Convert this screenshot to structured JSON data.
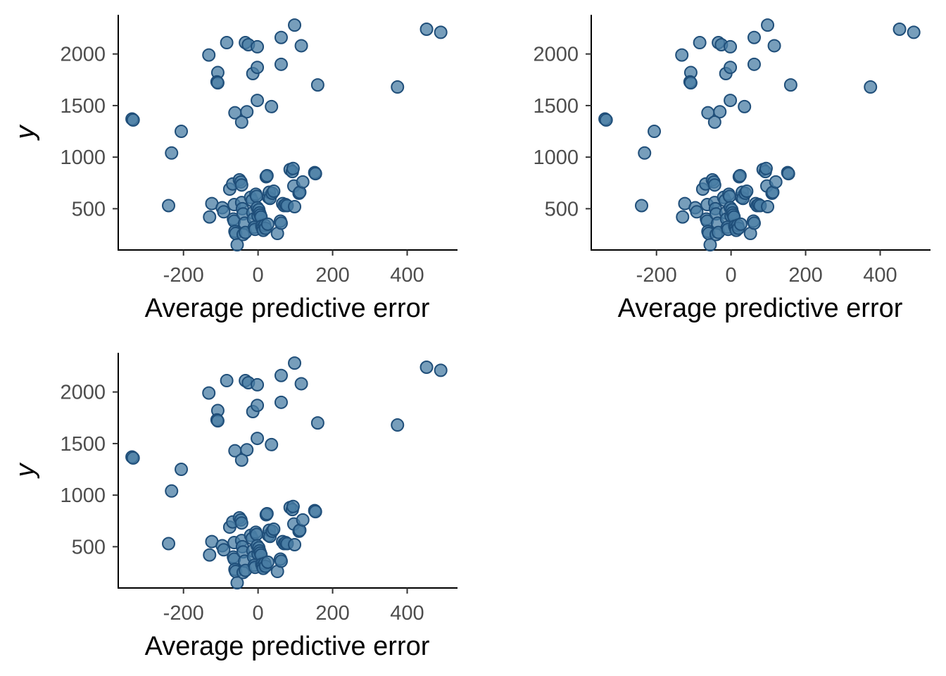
{
  "chart_data": [
    {
      "type": "scatter",
      "panel": "top-left",
      "xlabel": "Average predictive error",
      "ylabel": "y",
      "xlim": [
        -375,
        535
      ],
      "ylim": [
        100,
        2380
      ],
      "xticks": [
        -200,
        0,
        200,
        400
      ],
      "yticks": [
        500,
        1000,
        1500,
        2000
      ],
      "grid": false,
      "legend": "none",
      "point_fill": "#4a7da4",
      "point_stroke": "#1f4e79",
      "point_opacity": 0.75,
      "points": [
        [
          -338,
          1370
        ],
        [
          -335,
          1360
        ],
        [
          -206,
          1250
        ],
        [
          -232,
          1040
        ],
        [
          -240,
          530
        ],
        [
          -132,
          1990
        ],
        [
          -108,
          1820
        ],
        [
          -110,
          1730
        ],
        [
          -108,
          1720
        ],
        [
          -84,
          2110
        ],
        [
          -34,
          2110
        ],
        [
          -26,
          2090
        ],
        [
          -2,
          2070
        ],
        [
          62,
          2160
        ],
        [
          98,
          2280
        ],
        [
          116,
          2080
        ],
        [
          62,
          1900
        ],
        [
          -14,
          1810
        ],
        [
          -2,
          1870
        ],
        [
          -2,
          1550
        ],
        [
          36,
          1490
        ],
        [
          -62,
          1430
        ],
        [
          -30,
          1440
        ],
        [
          -44,
          1340
        ],
        [
          160,
          1700
        ],
        [
          374,
          1680
        ],
        [
          452,
          2240
        ],
        [
          490,
          2210
        ],
        [
          -130,
          420
        ],
        [
          -124,
          550
        ],
        [
          -96,
          510
        ],
        [
          -92,
          470
        ],
        [
          -76,
          690
        ],
        [
          -68,
          740
        ],
        [
          -64,
          540
        ],
        [
          -66,
          400
        ],
        [
          -64,
          380
        ],
        [
          -62,
          280
        ],
        [
          -60,
          260
        ],
        [
          -56,
          150
        ],
        [
          -50,
          780
        ],
        [
          -46,
          760
        ],
        [
          -44,
          730
        ],
        [
          -44,
          560
        ],
        [
          -42,
          500
        ],
        [
          -40,
          450
        ],
        [
          -36,
          360
        ],
        [
          -40,
          250
        ],
        [
          -34,
          270
        ],
        [
          -20,
          610
        ],
        [
          -16,
          580
        ],
        [
          -14,
          460
        ],
        [
          -12,
          400
        ],
        [
          -10,
          320
        ],
        [
          -8,
          300
        ],
        [
          -6,
          640
        ],
        [
          -4,
          620
        ],
        [
          -2,
          510
        ],
        [
          0,
          430
        ],
        [
          2,
          490
        ],
        [
          4,
          460
        ],
        [
          6,
          440
        ],
        [
          8,
          420
        ],
        [
          10,
          330
        ],
        [
          12,
          310
        ],
        [
          14,
          290
        ],
        [
          18,
          340
        ],
        [
          20,
          310
        ],
        [
          22,
          810
        ],
        [
          24,
          820
        ],
        [
          26,
          350
        ],
        [
          28,
          610
        ],
        [
          30,
          660
        ],
        [
          32,
          600
        ],
        [
          38,
          650
        ],
        [
          42,
          670
        ],
        [
          52,
          260
        ],
        [
          60,
          380
        ],
        [
          62,
          360
        ],
        [
          66,
          550
        ],
        [
          70,
          530
        ],
        [
          74,
          540
        ],
        [
          78,
          530
        ],
        [
          86,
          880
        ],
        [
          92,
          860
        ],
        [
          94,
          890
        ],
        [
          96,
          720
        ],
        [
          98,
          520
        ],
        [
          110,
          650
        ],
        [
          112,
          660
        ],
        [
          120,
          760
        ],
        [
          152,
          850
        ],
        [
          154,
          840
        ]
      ]
    },
    {
      "type": "scatter",
      "panel": "top-right",
      "xlabel": "Average predictive error",
      "ylabel": "y",
      "xlim": [
        -375,
        535
      ],
      "ylim": [
        100,
        2380
      ],
      "xticks": [
        -200,
        0,
        200,
        400
      ],
      "yticks": [
        500,
        1000,
        1500,
        2000
      ],
      "grid": false,
      "legend": "none",
      "point_fill": "#4a7da4",
      "point_stroke": "#1f4e79",
      "point_opacity": 0.75,
      "points": [
        [
          -338,
          1370
        ],
        [
          -335,
          1360
        ],
        [
          -206,
          1250
        ],
        [
          -232,
          1040
        ],
        [
          -240,
          530
        ],
        [
          -132,
          1990
        ],
        [
          -108,
          1820
        ],
        [
          -110,
          1730
        ],
        [
          -108,
          1720
        ],
        [
          -84,
          2110
        ],
        [
          -34,
          2110
        ],
        [
          -26,
          2090
        ],
        [
          -2,
          2070
        ],
        [
          62,
          2160
        ],
        [
          98,
          2280
        ],
        [
          116,
          2080
        ],
        [
          62,
          1900
        ],
        [
          -14,
          1810
        ],
        [
          -2,
          1870
        ],
        [
          -2,
          1550
        ],
        [
          36,
          1490
        ],
        [
          -62,
          1430
        ],
        [
          -30,
          1440
        ],
        [
          -44,
          1340
        ],
        [
          160,
          1700
        ],
        [
          374,
          1680
        ],
        [
          452,
          2240
        ],
        [
          490,
          2210
        ],
        [
          -130,
          420
        ],
        [
          -124,
          550
        ],
        [
          -96,
          510
        ],
        [
          -92,
          470
        ],
        [
          -76,
          690
        ],
        [
          -68,
          740
        ],
        [
          -64,
          540
        ],
        [
          -66,
          400
        ],
        [
          -64,
          380
        ],
        [
          -62,
          280
        ],
        [
          -60,
          260
        ],
        [
          -56,
          150
        ],
        [
          -50,
          780
        ],
        [
          -46,
          760
        ],
        [
          -44,
          730
        ],
        [
          -44,
          560
        ],
        [
          -42,
          500
        ],
        [
          -40,
          450
        ],
        [
          -36,
          360
        ],
        [
          -40,
          250
        ],
        [
          -34,
          270
        ],
        [
          -20,
          610
        ],
        [
          -16,
          580
        ],
        [
          -14,
          460
        ],
        [
          -12,
          400
        ],
        [
          -10,
          320
        ],
        [
          -8,
          300
        ],
        [
          -6,
          640
        ],
        [
          -4,
          620
        ],
        [
          -2,
          510
        ],
        [
          0,
          430
        ],
        [
          2,
          490
        ],
        [
          4,
          460
        ],
        [
          6,
          440
        ],
        [
          8,
          420
        ],
        [
          10,
          330
        ],
        [
          12,
          310
        ],
        [
          14,
          290
        ],
        [
          18,
          340
        ],
        [
          20,
          310
        ],
        [
          22,
          810
        ],
        [
          24,
          820
        ],
        [
          26,
          350
        ],
        [
          28,
          610
        ],
        [
          30,
          660
        ],
        [
          32,
          600
        ],
        [
          38,
          650
        ],
        [
          42,
          670
        ],
        [
          52,
          260
        ],
        [
          60,
          380
        ],
        [
          62,
          360
        ],
        [
          66,
          550
        ],
        [
          70,
          530
        ],
        [
          74,
          540
        ],
        [
          78,
          530
        ],
        [
          86,
          880
        ],
        [
          92,
          860
        ],
        [
          94,
          890
        ],
        [
          96,
          720
        ],
        [
          98,
          520
        ],
        [
          110,
          650
        ],
        [
          112,
          660
        ],
        [
          120,
          760
        ],
        [
          152,
          850
        ],
        [
          154,
          840
        ]
      ]
    },
    {
      "type": "scatter",
      "panel": "bottom-left",
      "xlabel": "Average predictive error",
      "ylabel": "y",
      "xlim": [
        -375,
        535
      ],
      "ylim": [
        100,
        2380
      ],
      "xticks": [
        -200,
        0,
        200,
        400
      ],
      "yticks": [
        500,
        1000,
        1500,
        2000
      ],
      "grid": false,
      "legend": "none",
      "point_fill": "#4a7da4",
      "point_stroke": "#1f4e79",
      "point_opacity": 0.75,
      "points": [
        [
          -338,
          1370
        ],
        [
          -335,
          1360
        ],
        [
          -206,
          1250
        ],
        [
          -232,
          1040
        ],
        [
          -240,
          530
        ],
        [
          -132,
          1990
        ],
        [
          -108,
          1820
        ],
        [
          -110,
          1730
        ],
        [
          -108,
          1720
        ],
        [
          -84,
          2110
        ],
        [
          -34,
          2110
        ],
        [
          -26,
          2090
        ],
        [
          -2,
          2070
        ],
        [
          62,
          2160
        ],
        [
          98,
          2280
        ],
        [
          116,
          2080
        ],
        [
          62,
          1900
        ],
        [
          -14,
          1810
        ],
        [
          -2,
          1870
        ],
        [
          -2,
          1550
        ],
        [
          36,
          1490
        ],
        [
          -62,
          1430
        ],
        [
          -30,
          1440
        ],
        [
          -44,
          1340
        ],
        [
          160,
          1700
        ],
        [
          374,
          1680
        ],
        [
          452,
          2240
        ],
        [
          490,
          2210
        ],
        [
          -130,
          420
        ],
        [
          -124,
          550
        ],
        [
          -96,
          510
        ],
        [
          -92,
          470
        ],
        [
          -76,
          690
        ],
        [
          -68,
          740
        ],
        [
          -64,
          540
        ],
        [
          -66,
          400
        ],
        [
          -64,
          380
        ],
        [
          -62,
          280
        ],
        [
          -60,
          260
        ],
        [
          -56,
          150
        ],
        [
          -50,
          780
        ],
        [
          -46,
          760
        ],
        [
          -44,
          730
        ],
        [
          -44,
          560
        ],
        [
          -42,
          500
        ],
        [
          -40,
          450
        ],
        [
          -36,
          360
        ],
        [
          -40,
          250
        ],
        [
          -34,
          270
        ],
        [
          -20,
          610
        ],
        [
          -16,
          580
        ],
        [
          -14,
          460
        ],
        [
          -12,
          400
        ],
        [
          -10,
          320
        ],
        [
          -8,
          300
        ],
        [
          -6,
          640
        ],
        [
          -4,
          620
        ],
        [
          -2,
          510
        ],
        [
          0,
          430
        ],
        [
          2,
          490
        ],
        [
          4,
          460
        ],
        [
          6,
          440
        ],
        [
          8,
          420
        ],
        [
          10,
          330
        ],
        [
          12,
          310
        ],
        [
          14,
          290
        ],
        [
          18,
          340
        ],
        [
          20,
          310
        ],
        [
          22,
          810
        ],
        [
          24,
          820
        ],
        [
          26,
          350
        ],
        [
          28,
          610
        ],
        [
          30,
          660
        ],
        [
          32,
          600
        ],
        [
          38,
          650
        ],
        [
          42,
          670
        ],
        [
          52,
          260
        ],
        [
          60,
          380
        ],
        [
          62,
          360
        ],
        [
          66,
          550
        ],
        [
          70,
          530
        ],
        [
          74,
          540
        ],
        [
          78,
          530
        ],
        [
          86,
          880
        ],
        [
          92,
          860
        ],
        [
          94,
          890
        ],
        [
          96,
          720
        ],
        [
          98,
          520
        ],
        [
          110,
          650
        ],
        [
          112,
          660
        ],
        [
          120,
          760
        ],
        [
          152,
          850
        ],
        [
          154,
          840
        ]
      ]
    }
  ]
}
